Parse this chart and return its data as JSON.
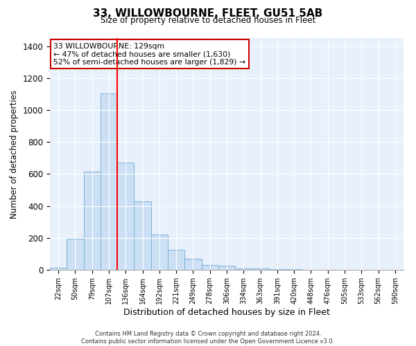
{
  "title": "33, WILLOWBOURNE, FLEET, GU51 5AB",
  "subtitle": "Size of property relative to detached houses in Fleet",
  "xlabel": "Distribution of detached houses by size in Fleet",
  "ylabel": "Number of detached properties",
  "bar_color": "#cce0f5",
  "bar_edge_color": "#7bafd4",
  "bar_labels": [
    "22sqm",
    "50sqm",
    "79sqm",
    "107sqm",
    "136sqm",
    "164sqm",
    "192sqm",
    "221sqm",
    "249sqm",
    "278sqm",
    "306sqm",
    "334sqm",
    "363sqm",
    "391sqm",
    "420sqm",
    "448sqm",
    "476sqm",
    "505sqm",
    "533sqm",
    "562sqm",
    "590sqm"
  ],
  "bar_values": [
    15,
    195,
    615,
    1105,
    670,
    430,
    220,
    125,
    70,
    30,
    25,
    10,
    10,
    5,
    5,
    0,
    0,
    0,
    0,
    0,
    0
  ],
  "bar_width": 1.0,
  "ylim": [
    0,
    1450
  ],
  "yticks": [
    0,
    200,
    400,
    600,
    800,
    1000,
    1200,
    1400
  ],
  "red_line_x": 4.0,
  "annotation_text": "33 WILLOWBOURNE: 129sqm\n← 47% of detached houses are smaller (1,630)\n52% of semi-detached houses are larger (1,829) →",
  "annotation_box_color": "#ffffff",
  "annotation_box_edge": "#cc0000",
  "footnote": "Contains HM Land Registry data © Crown copyright and database right 2024.\nContains public sector information licensed under the Open Government Licence v3.0.",
  "background_color": "#e8f0fb"
}
